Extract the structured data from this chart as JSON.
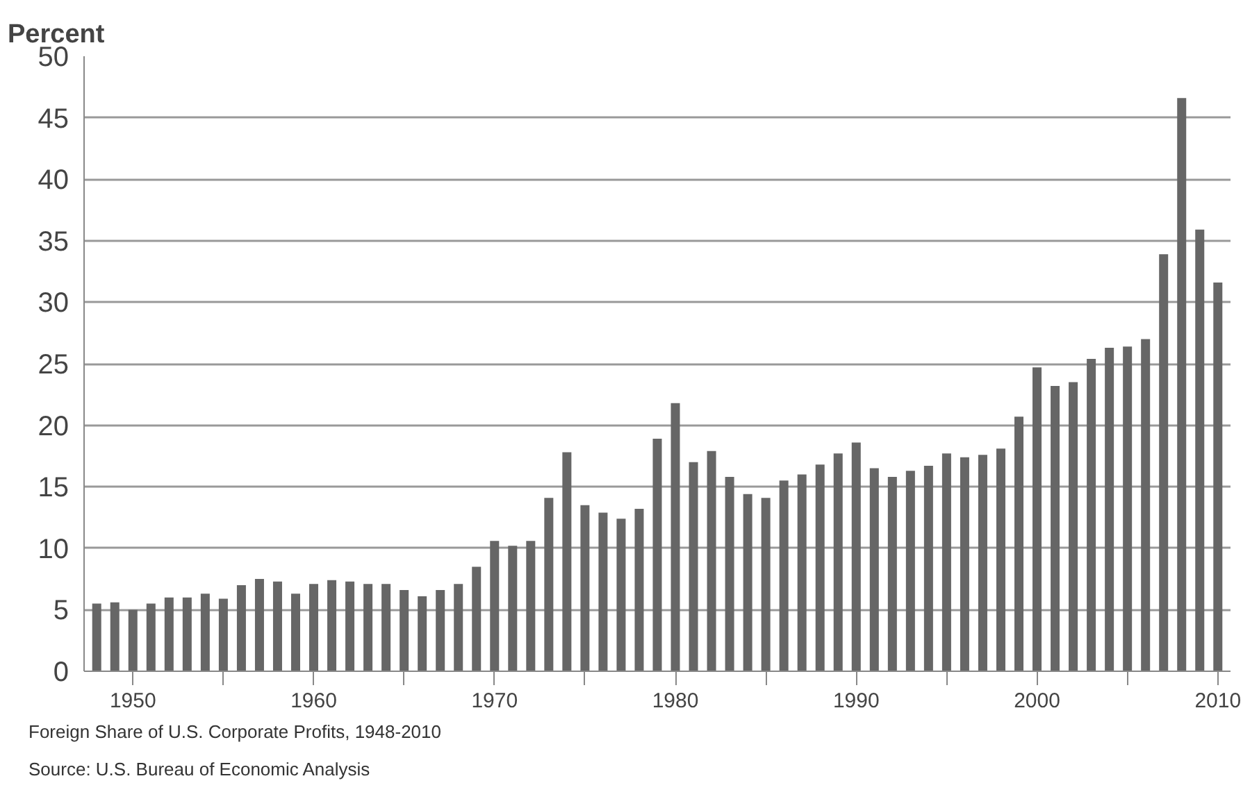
{
  "chart_data": {
    "type": "bar",
    "ylabel": "Percent",
    "color": "#666666",
    "x": [
      1948,
      1949,
      1950,
      1951,
      1952,
      1953,
      1954,
      1955,
      1956,
      1957,
      1958,
      1959,
      1960,
      1961,
      1962,
      1963,
      1964,
      1965,
      1966,
      1967,
      1968,
      1969,
      1970,
      1971,
      1972,
      1973,
      1974,
      1975,
      1976,
      1977,
      1978,
      1979,
      1980,
      1981,
      1982,
      1983,
      1984,
      1985,
      1986,
      1987,
      1988,
      1989,
      1990,
      1991,
      1992,
      1993,
      1994,
      1995,
      1996,
      1997,
      1998,
      1999,
      2000,
      2001,
      2002,
      2003,
      2004,
      2005,
      2006,
      2007,
      2008,
      2009,
      2010
    ],
    "values": [
      5.5,
      5.6,
      5.0,
      5.5,
      6.0,
      6.0,
      6.3,
      5.9,
      7.0,
      7.5,
      7.3,
      6.3,
      7.1,
      7.4,
      7.3,
      7.1,
      7.1,
      6.6,
      6.1,
      6.6,
      7.1,
      8.5,
      10.6,
      10.2,
      10.6,
      14.1,
      17.8,
      13.5,
      12.9,
      12.4,
      13.2,
      18.9,
      21.8,
      17.0,
      17.9,
      15.8,
      14.4,
      14.1,
      15.5,
      16.0,
      16.8,
      17.7,
      18.6,
      16.5,
      15.8,
      16.3,
      16.7,
      17.7,
      17.4,
      17.6,
      18.1,
      20.7,
      24.7,
      23.2,
      23.5,
      25.4,
      26.3,
      26.4,
      27.0,
      33.9,
      46.6,
      35.9,
      31.6
    ],
    "xlim": [
      1947.3,
      2010.7
    ],
    "xticks": [
      1950,
      {
        "value": 1955,
        "label": null
      },
      1960,
      {
        "value": 1965,
        "label": null
      },
      1970,
      {
        "value": 1975,
        "label": null
      },
      1980,
      {
        "value": 1985,
        "label": null
      },
      1990,
      {
        "value": 1995,
        "label": null
      },
      2000,
      {
        "value": 2005,
        "label": null
      },
      2010
    ],
    "ylim": [
      0,
      50
    ],
    "yticks": [
      0,
      5,
      10,
      15,
      20,
      25,
      30,
      35,
      40,
      45,
      50
    ],
    "grid": "y",
    "annotations": [
      "Foreign Share of U.S. Corporate Profits, 1948-2010",
      "Source:  U.S. Bureau of Economic Analysis"
    ]
  }
}
